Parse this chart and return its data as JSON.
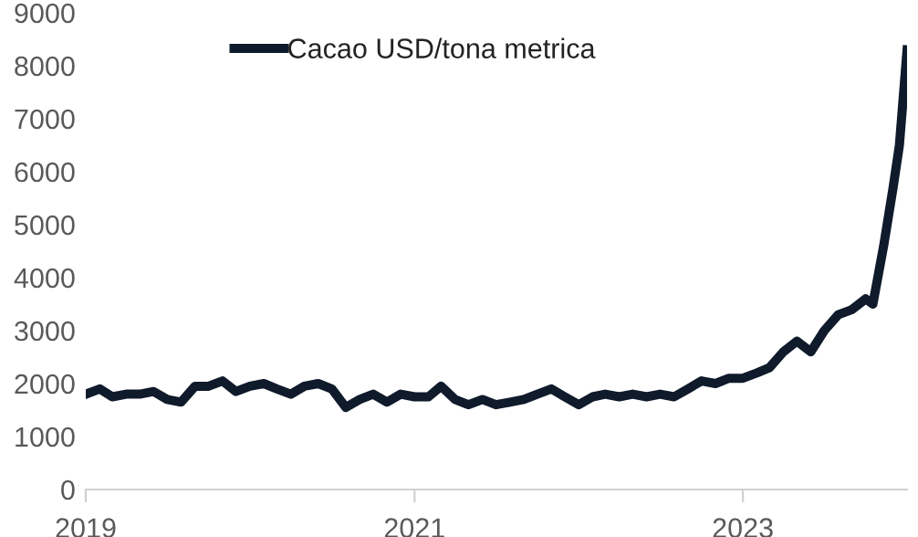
{
  "chart_data": {
    "type": "line",
    "x": [
      "2019-01-01",
      "2019-02-01",
      "2019-03-01",
      "2019-04-01",
      "2019-05-01",
      "2019-06-01",
      "2019-07-01",
      "2019-08-01",
      "2019-09-01",
      "2019-10-01",
      "2019-11-01",
      "2019-12-01",
      "2020-01-01",
      "2020-02-01",
      "2020-03-01",
      "2020-04-01",
      "2020-05-01",
      "2020-06-01",
      "2020-07-01",
      "2020-08-01",
      "2020-09-01",
      "2020-10-01",
      "2020-11-01",
      "2020-12-01",
      "2021-01-01",
      "2021-02-01",
      "2021-03-01",
      "2021-04-01",
      "2021-05-01",
      "2021-06-01",
      "2021-07-01",
      "2021-08-01",
      "2021-09-01",
      "2021-10-01",
      "2021-11-01",
      "2021-12-01",
      "2022-01-01",
      "2022-02-01",
      "2022-03-01",
      "2022-04-01",
      "2022-05-01",
      "2022-06-01",
      "2022-07-01",
      "2022-08-01",
      "2022-09-01",
      "2022-10-01",
      "2022-11-01",
      "2022-12-01",
      "2023-01-01",
      "2023-02-01",
      "2023-03-01",
      "2023-04-01",
      "2023-05-01",
      "2023-06-01",
      "2023-07-01",
      "2023-08-01",
      "2023-09-01",
      "2023-10-01",
      "2023-10-17",
      "2023-11-10",
      "2023-12-01",
      "2023-12-15",
      "2024-01-01"
    ],
    "series": [
      {
        "name": "Cacao USD/tona metrica",
        "color": "#0f1a2b",
        "values": [
          1800,
          1900,
          1750,
          1800,
          1800,
          1850,
          1700,
          1650,
          1950,
          1950,
          2050,
          1850,
          1950,
          2000,
          1900,
          1800,
          1950,
          2000,
          1900,
          1550,
          1700,
          1800,
          1650,
          1800,
          1750,
          1750,
          1950,
          1700,
          1600,
          1700,
          1600,
          1650,
          1700,
          1800,
          1900,
          1750,
          1600,
          1750,
          1800,
          1750,
          1800,
          1750,
          1800,
          1750,
          1900,
          2050,
          2000,
          2100,
          2100,
          2200,
          2300,
          2600,
          2800,
          2600,
          3000,
          3300,
          3400,
          3600,
          3500,
          4600,
          5700,
          6500,
          8300
        ]
      }
    ],
    "xlim": [
      "2019-01-01",
      "2024-01-01"
    ],
    "xticks": [
      {
        "value": "2019-01-01",
        "label": "2019"
      },
      {
        "value": "2021-01-01",
        "label": "2021"
      },
      {
        "value": "2023-01-01",
        "label": "2023"
      }
    ],
    "ylim": [
      0,
      9000
    ],
    "yticks": [
      0,
      1000,
      2000,
      3000,
      4000,
      5000,
      6000,
      7000,
      8000,
      9000
    ],
    "grid": false,
    "legend": "top left",
    "line_style": "solid",
    "marker": "none"
  }
}
